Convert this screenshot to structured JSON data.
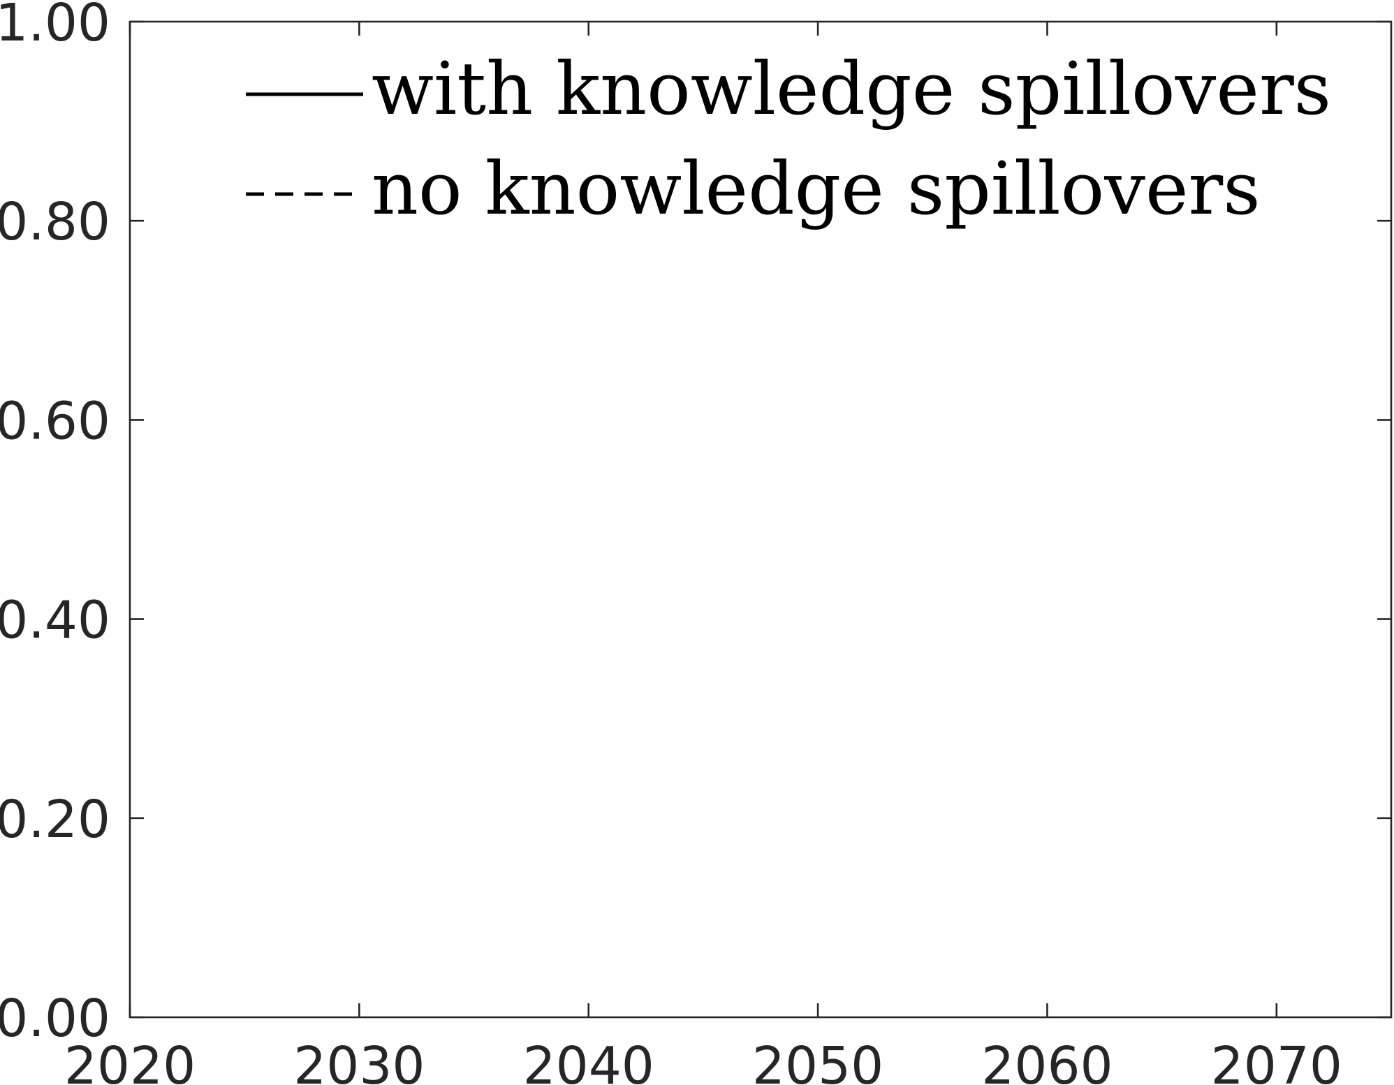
{
  "chart_data": {
    "type": "line",
    "title": "",
    "xlabel": "",
    "ylabel": "",
    "xlim": [
      2020,
      2075
    ],
    "ylim": [
      0,
      1
    ],
    "x_ticks": [
      2020,
      2030,
      2040,
      2050,
      2060,
      2070
    ],
    "x_tick_labels": [
      "2020",
      "2030",
      "2040",
      "2050",
      "2060",
      "2070"
    ],
    "y_ticks": [
      0,
      0.2,
      0.4,
      0.6,
      0.8,
      1.0
    ],
    "y_tick_labels": [
      "0.00",
      "0.20",
      "0.40",
      "0.60",
      "0.80",
      "1.00"
    ],
    "grid": false,
    "legend_position": "top",
    "series": [
      {
        "name": "with knowledge spillovers",
        "line_style": "solid",
        "color": "#000000",
        "x": [],
        "y": []
      },
      {
        "name": "no knowledge spillovers",
        "line_style": "dashed",
        "color": "#000000",
        "x": [],
        "y": []
      }
    ]
  }
}
